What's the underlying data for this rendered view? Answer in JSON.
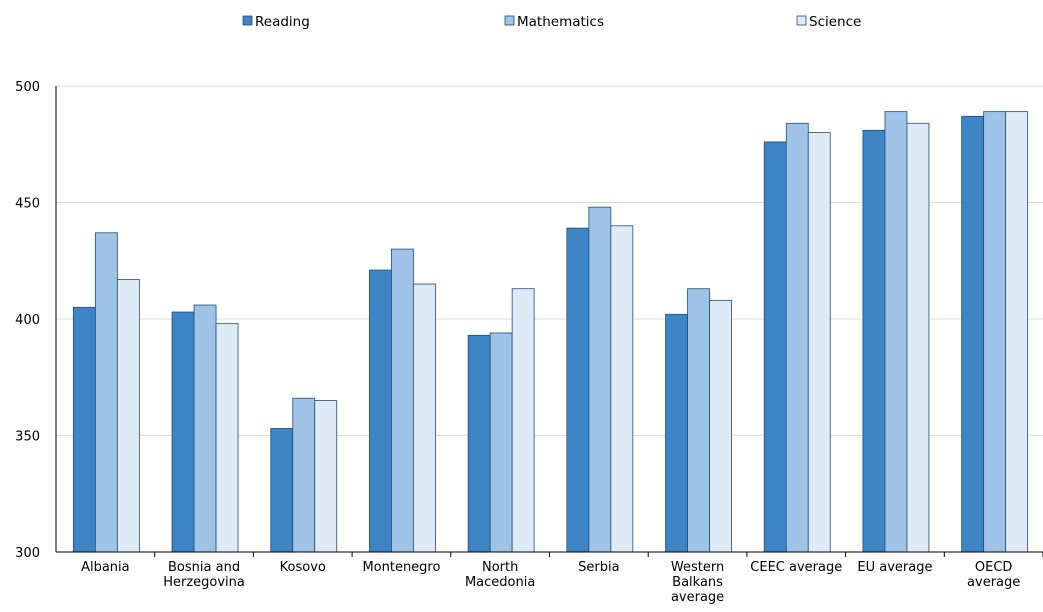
{
  "chart_data": {
    "type": "bar",
    "title": "",
    "xlabel": "",
    "ylabel": "",
    "ylim": [
      300,
      500
    ],
    "yticks": [
      300,
      350,
      400,
      450,
      500
    ],
    "grid": true,
    "legend_position": "top",
    "categories": [
      [
        "Albania"
      ],
      [
        "Bosnia and",
        "Herzegovina"
      ],
      [
        "Kosovo"
      ],
      [
        "Montenegro"
      ],
      [
        "North",
        "Macedonia"
      ],
      [
        "Serbia"
      ],
      [
        "Western",
        "Balkans",
        "average"
      ],
      [
        "CEEC average"
      ],
      [
        "EU average"
      ],
      [
        "OECD",
        "average"
      ]
    ],
    "series": [
      {
        "name": "Reading",
        "color": "#3d85c6",
        "stroke": "#1f4e79",
        "values": [
          405,
          403,
          353,
          421,
          393,
          439,
          402,
          476,
          481,
          487
        ]
      },
      {
        "name": "Mathematics",
        "color": "#9fc3e7",
        "stroke": "#1f4e79",
        "values": [
          437,
          406,
          366,
          430,
          394,
          448,
          413,
          484,
          489,
          489
        ]
      },
      {
        "name": "Science",
        "color": "#deebf7",
        "stroke": "#1f4e79",
        "values": [
          417,
          398,
          365,
          415,
          413,
          440,
          408,
          480,
          484,
          489
        ]
      }
    ]
  }
}
